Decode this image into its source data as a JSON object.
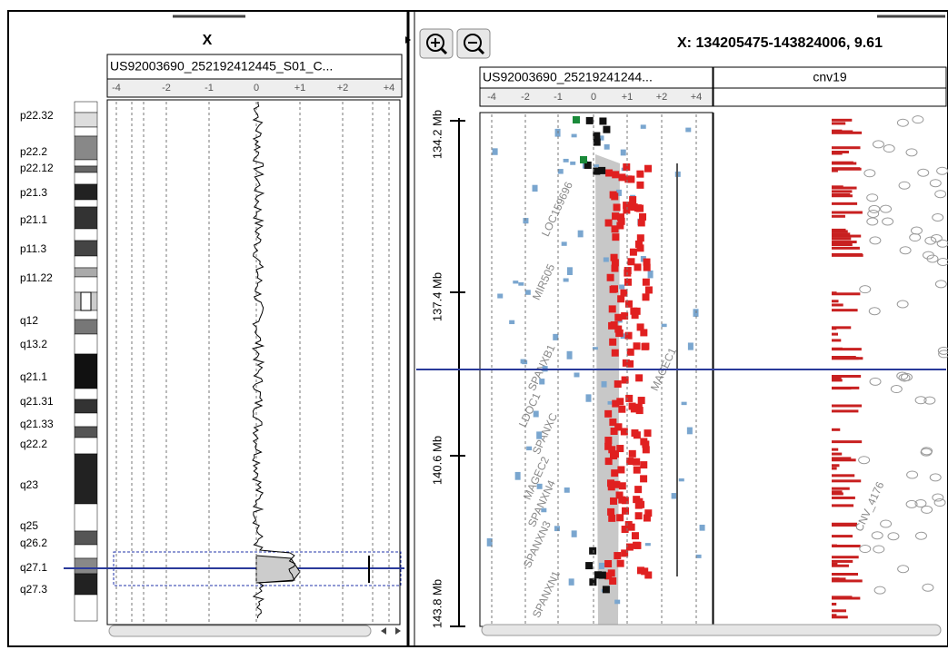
{
  "left_panel": {
    "chromosome": "X",
    "track_name": "US92003690_252192412445_S01_C...",
    "scale": [
      "-4",
      "-2",
      "-1",
      "0",
      "+1",
      "+2",
      "+4"
    ],
    "bands": [
      "p22.32",
      "p22.2",
      "p22.12",
      "p21.3",
      "p21.1",
      "p11.3",
      "p11.22",
      "q12",
      "q13.2",
      "q21.1",
      "q21.31",
      "q21.33",
      "q22.2",
      "q23",
      "q25",
      "q26.2",
      "q27.1",
      "q27.3"
    ]
  },
  "right_panel": {
    "region": "X: 134205475-143824006, 9.61",
    "track_name": "US92003690_25219241244...",
    "cnv_track": "cnv19",
    "scale": [
      "-4",
      "-2",
      "-1",
      "0",
      "+1",
      "+2",
      "+4"
    ],
    "positions": [
      "134.2 Mb",
      "137.4 Mb",
      "140.6 Mb",
      "143.8 Mb"
    ],
    "genes": [
      "LOC159696",
      "MIR505",
      "SPANXB1",
      "LDOC1",
      "SPANXC",
      "MAGEC2",
      "SPANXN4",
      "SPANXN3",
      "SPANXN1",
      "MAGEC1"
    ],
    "cnv_labels": [
      "CNV_4176"
    ]
  }
}
